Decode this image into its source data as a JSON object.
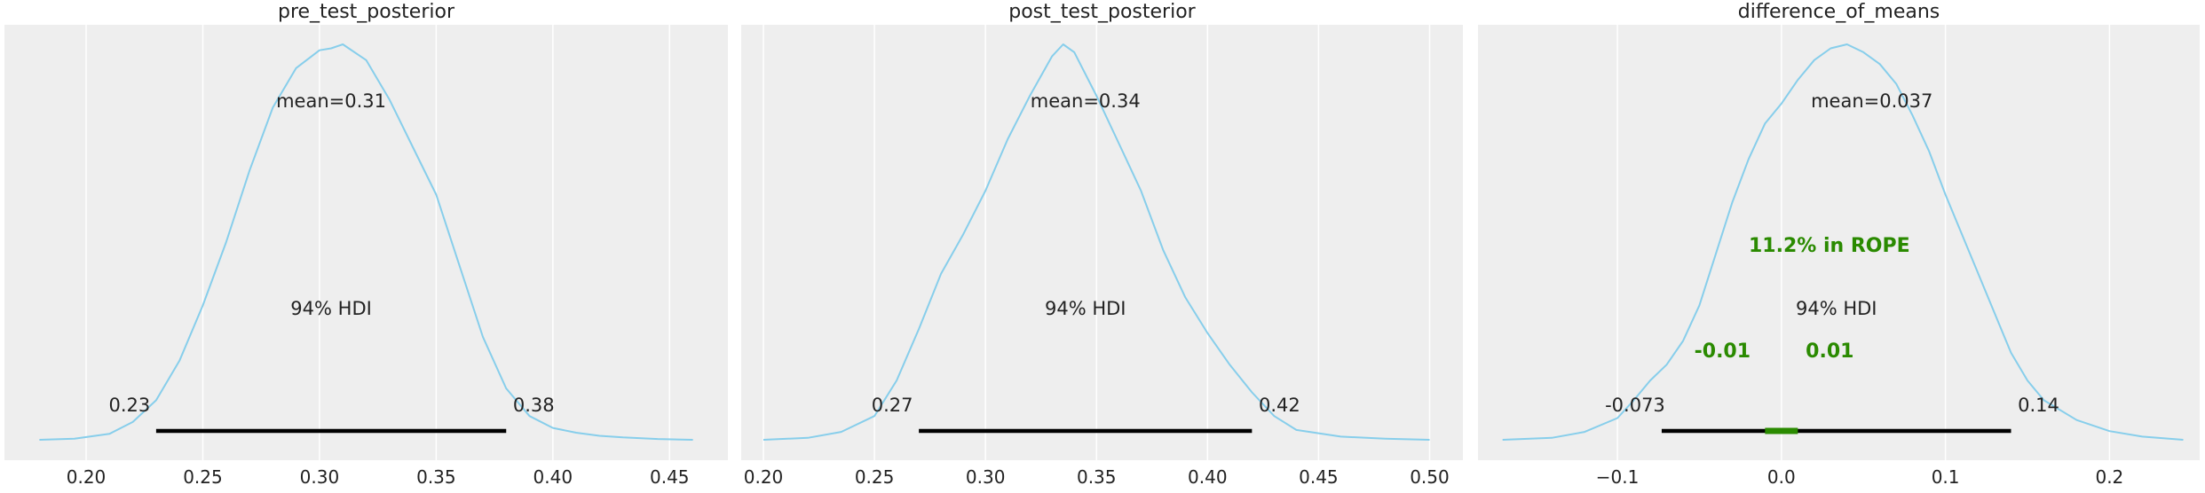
{
  "colors": {
    "background": "#ffffff",
    "plot_background": "#eeeeee",
    "grid": "#ffffff",
    "density_line": "#87ceeb",
    "hdi_bar": "#000000",
    "rope": "#2a8a00",
    "text": "#222222"
  },
  "chart_data": [
    {
      "type": "line",
      "title": "pre_test_posterior",
      "xlim": [
        0.165,
        0.475
      ],
      "xticks": [
        0.2,
        0.25,
        0.3,
        0.35,
        0.4,
        0.45
      ],
      "tick_labels": [
        "0.20",
        "0.25",
        "0.30",
        "0.35",
        "0.40",
        "0.45"
      ],
      "mean_label": "mean=0.31",
      "hdi_label": "94% HDI",
      "hdi": [
        0.23,
        0.38
      ],
      "hdi_labels": [
        "0.23",
        "0.38"
      ],
      "density": {
        "x": [
          0.18,
          0.195,
          0.21,
          0.22,
          0.23,
          0.24,
          0.25,
          0.26,
          0.27,
          0.28,
          0.29,
          0.3,
          0.305,
          0.31,
          0.32,
          0.33,
          0.34,
          0.35,
          0.36,
          0.37,
          0.38,
          0.39,
          0.4,
          0.41,
          0.42,
          0.43,
          0.445,
          0.46
        ],
        "y": [
          0.0,
          0.003,
          0.015,
          0.045,
          0.1,
          0.2,
          0.34,
          0.5,
          0.68,
          0.84,
          0.94,
          0.985,
          0.99,
          1.0,
          0.96,
          0.86,
          0.74,
          0.62,
          0.44,
          0.26,
          0.13,
          0.06,
          0.03,
          0.018,
          0.01,
          0.006,
          0.002,
          0.0
        ]
      }
    },
    {
      "type": "line",
      "title": "post_test_posterior",
      "xlim": [
        0.19,
        0.515
      ],
      "xticks": [
        0.2,
        0.25,
        0.3,
        0.35,
        0.4,
        0.45,
        0.5
      ],
      "tick_labels": [
        "0.20",
        "0.25",
        "0.30",
        "0.35",
        "0.40",
        "0.45",
        "0.50"
      ],
      "mean_label": "mean=0.34",
      "hdi_label": "94% HDI",
      "hdi": [
        0.27,
        0.42
      ],
      "hdi_labels": [
        "0.27",
        "0.42"
      ],
      "density": {
        "x": [
          0.2,
          0.22,
          0.235,
          0.25,
          0.26,
          0.27,
          0.28,
          0.29,
          0.3,
          0.31,
          0.32,
          0.33,
          0.335,
          0.34,
          0.35,
          0.36,
          0.37,
          0.38,
          0.39,
          0.4,
          0.41,
          0.42,
          0.43,
          0.44,
          0.46,
          0.48,
          0.5
        ],
        "y": [
          0.0,
          0.005,
          0.02,
          0.06,
          0.15,
          0.28,
          0.42,
          0.52,
          0.63,
          0.76,
          0.87,
          0.97,
          1.0,
          0.98,
          0.87,
          0.75,
          0.63,
          0.48,
          0.36,
          0.27,
          0.19,
          0.12,
          0.06,
          0.025,
          0.008,
          0.003,
          0.0
        ]
      }
    },
    {
      "type": "line",
      "title": "difference_of_means",
      "xlim": [
        -0.185,
        0.255
      ],
      "xticks": [
        -0.1,
        0.0,
        0.1,
        0.2
      ],
      "tick_labels": [
        "−0.1",
        "0.0",
        "0.1",
        "0.2"
      ],
      "mean_label": "mean=0.037",
      "hdi_label": "94% HDI",
      "hdi": [
        -0.073,
        0.14
      ],
      "hdi_labels": [
        "-0.073",
        "0.14"
      ],
      "rope": [
        -0.01,
        0.01
      ],
      "rope_labels": [
        "-0.01",
        "0.01"
      ],
      "rope_text": "11.2% in ROPE",
      "density": {
        "x": [
          -0.17,
          -0.14,
          -0.12,
          -0.1,
          -0.09,
          -0.08,
          -0.07,
          -0.06,
          -0.05,
          -0.04,
          -0.03,
          -0.02,
          -0.01,
          0.0,
          0.01,
          0.02,
          0.03,
          0.04,
          0.05,
          0.06,
          0.07,
          0.08,
          0.09,
          0.1,
          0.11,
          0.12,
          0.13,
          0.14,
          0.15,
          0.16,
          0.18,
          0.2,
          0.22,
          0.245
        ],
        "y": [
          0.0,
          0.005,
          0.02,
          0.055,
          0.1,
          0.15,
          0.19,
          0.25,
          0.34,
          0.47,
          0.6,
          0.71,
          0.8,
          0.85,
          0.91,
          0.96,
          0.99,
          1.0,
          0.98,
          0.95,
          0.9,
          0.82,
          0.73,
          0.62,
          0.52,
          0.42,
          0.32,
          0.22,
          0.15,
          0.1,
          0.05,
          0.022,
          0.008,
          0.0
        ]
      }
    }
  ]
}
